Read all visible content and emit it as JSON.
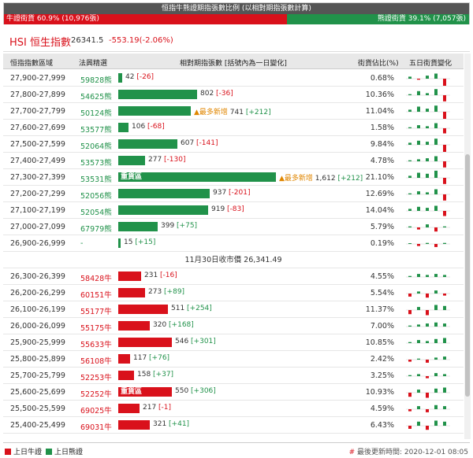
{
  "ratio": {
    "title": "恒指牛熊證期指張數比例 (以相對期指張數計算)",
    "bull_label": "牛證街貨 60.9% (10,976張)",
    "bear_label": "熊證街貨 39.1% (7,057張)",
    "bull_pct": 60.9,
    "colors": {
      "bull": "#d9111b",
      "bear": "#21924a"
    }
  },
  "index": {
    "name": "HSI 恒生指數",
    "price": "26341.5",
    "change": "-553.19(-2.06%)"
  },
  "table": {
    "headers": {
      "range": "恒指指數區域",
      "code": "法興精選",
      "count": "相對期指張數 [括號內為一日變化]",
      "pct": "街貨佔比(%)",
      "trend": "五日街貨變化"
    },
    "close_label": "11月30日收市價 26,341.49",
    "heavy_label": "重貨區",
    "newest_label": "▲最多新增",
    "bear_rows": [
      {
        "range": "27,900-27,999",
        "code": "59828熊",
        "count": "42",
        "chg": "[-26]",
        "value": 42,
        "pct": "0.68%",
        "trend": [
          2,
          -1,
          3,
          5,
          -7
        ]
      },
      {
        "range": "27,800-27,899",
        "code": "54625熊",
        "count": "802",
        "chg": "[-36]",
        "value": 802,
        "pct": "10.36%",
        "trend": [
          1,
          4,
          2,
          6,
          -6
        ]
      },
      {
        "range": "27,700-27,799",
        "code": "50124熊",
        "count": "741",
        "chg": "[+212]",
        "value": 741,
        "pct": "11.04%",
        "newest": true,
        "trend": [
          2,
          5,
          3,
          6,
          -7
        ]
      },
      {
        "range": "27,600-27,699",
        "code": "53577熊",
        "count": "106",
        "chg": "[-68]",
        "value": 106,
        "pct": "1.58%",
        "trend": [
          1,
          3,
          2,
          5,
          -5
        ]
      },
      {
        "range": "27,500-27,599",
        "code": "52064熊",
        "count": "607",
        "chg": "[-141]",
        "value": 607,
        "pct": "9.84%",
        "trend": [
          2,
          4,
          3,
          6,
          -7
        ]
      },
      {
        "range": "27,400-27,499",
        "code": "53573熊",
        "count": "277",
        "chg": "[-130]",
        "value": 277,
        "pct": "4.78%",
        "trend": [
          1,
          2,
          3,
          5,
          -6
        ]
      },
      {
        "range": "27,300-27,399",
        "code": "53531熊",
        "count": "1,612",
        "chg": "[+212]",
        "value": 1612,
        "pct": "21.10%",
        "heavy": true,
        "newest": true,
        "trend": [
          2,
          5,
          4,
          7,
          -6
        ]
      },
      {
        "range": "27,200-27,299",
        "code": "52056熊",
        "count": "937",
        "chg": "[-201]",
        "value": 937,
        "pct": "12.69%",
        "trend": [
          1,
          3,
          2,
          5,
          -6
        ]
      },
      {
        "range": "27,100-27,199",
        "code": "52054熊",
        "count": "919",
        "chg": "[-83]",
        "value": 919,
        "pct": "14.04%",
        "trend": [
          2,
          4,
          3,
          5,
          -5
        ]
      },
      {
        "range": "27,000-27,099",
        "code": "67979熊",
        "count": "399",
        "chg": "[+75]",
        "value": 399,
        "pct": "5.79%",
        "trend": [
          1,
          -2,
          3,
          -4,
          1
        ]
      },
      {
        "range": "26,900-26,999",
        "code": "-",
        "count": "15",
        "chg": "[+15]",
        "value": 15,
        "pct": "0.19%",
        "trend": [
          0,
          -2,
          1,
          -3,
          1
        ]
      }
    ],
    "bull_rows": [
      {
        "range": "26,300-26,399",
        "code": "58428牛",
        "count": "231",
        "chg": "[-16]",
        "value": 231,
        "pct": "4.55%",
        "trend": [
          1,
          3,
          2,
          3,
          2
        ]
      },
      {
        "range": "26,200-26,299",
        "code": "60151牛",
        "count": "273",
        "chg": "[+89]",
        "value": 273,
        "pct": "5.54%",
        "trend": [
          -3,
          2,
          -4,
          3,
          -2
        ]
      },
      {
        "range": "26,100-26,199",
        "code": "55177牛",
        "count": "511",
        "chg": "[+254]",
        "value": 511,
        "pct": "11.37%",
        "trend": [
          -4,
          3,
          -5,
          5,
          4
        ]
      },
      {
        "range": "26,000-26,099",
        "code": "55175牛",
        "count": "320",
        "chg": "[+168]",
        "value": 320,
        "pct": "7.00%",
        "trend": [
          1,
          2,
          3,
          4,
          3
        ]
      },
      {
        "range": "25,900-25,999",
        "code": "55633牛",
        "count": "546",
        "chg": "[+301]",
        "value": 546,
        "pct": "10.85%",
        "trend": [
          1,
          3,
          2,
          4,
          5
        ]
      },
      {
        "range": "25,800-25,899",
        "code": "56108牛",
        "count": "117",
        "chg": "[+76]",
        "value": 117,
        "pct": "2.42%",
        "trend": [
          -2,
          1,
          -3,
          2,
          3
        ]
      },
      {
        "range": "25,700-25,799",
        "code": "52253牛",
        "count": "158",
        "chg": "[+37]",
        "value": 158,
        "pct": "3.25%",
        "trend": [
          1,
          2,
          -2,
          3,
          2
        ]
      },
      {
        "range": "25,600-25,699",
        "code": "52252牛",
        "count": "550",
        "chg": "[+306]",
        "value": 550,
        "pct": "10.93%",
        "heavy": true,
        "trend": [
          -4,
          3,
          -5,
          4,
          5
        ]
      },
      {
        "range": "25,500-25,599",
        "code": "69025牛",
        "count": "217",
        "chg": "[-1]",
        "value": 217,
        "pct": "4.59%",
        "trend": [
          -2,
          3,
          -3,
          4,
          3
        ]
      },
      {
        "range": "25,400-25,499",
        "code": "69031牛",
        "count": "321",
        "chg": "[+41]",
        "value": 321,
        "pct": "6.43%",
        "trend": [
          -3,
          4,
          -4,
          5,
          4
        ]
      }
    ]
  },
  "footer": {
    "legend_bull": "上日牛證",
    "legend_bear": "上日熊證",
    "update_prefix": "#",
    "update_label": "最後更新時間: 2020-12-01 08:05"
  }
}
